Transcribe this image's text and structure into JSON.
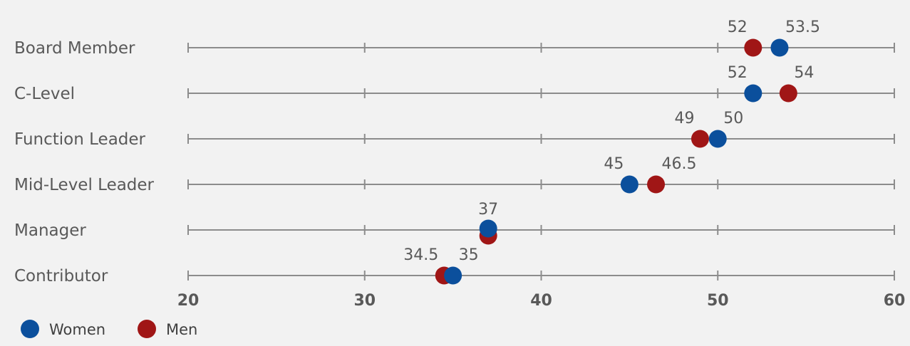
{
  "colors": {
    "background": "#f2f2f2",
    "women": "#0b4f9c",
    "men": "#a01616",
    "line": "#8c8c8c",
    "text": "#595959"
  },
  "chart_data": {
    "type": "scatter",
    "subtype": "dot-plot",
    "categories": [
      "Board Member",
      "C-Level",
      "Function Leader",
      "Mid-Level Leader",
      "Manager",
      "Contributor"
    ],
    "xlim": [
      20,
      60
    ],
    "xticks": [
      20,
      30,
      40,
      50,
      60
    ],
    "grid": false,
    "legend_position": "bottom-left",
    "series": [
      {
        "name": "Women",
        "color": "#0b4f9c",
        "values": [
          53.5,
          52,
          50,
          45,
          37,
          35
        ]
      },
      {
        "name": "Men",
        "color": "#a01616",
        "values": [
          52,
          54,
          49,
          46.5,
          37,
          34.5
        ]
      }
    ],
    "labels": [
      {
        "category": "Board Member",
        "texts": [
          "52",
          "53.5"
        ]
      },
      {
        "category": "C-Level",
        "texts": [
          "52",
          "54"
        ]
      },
      {
        "category": "Function Leader",
        "texts": [
          "49",
          "50"
        ]
      },
      {
        "category": "Mid-Level Leader",
        "texts": [
          "45",
          "46.5"
        ]
      },
      {
        "category": "Manager",
        "texts": [
          "37"
        ]
      },
      {
        "category": "Contributor",
        "texts": [
          "34.5",
          "35"
        ]
      }
    ]
  }
}
